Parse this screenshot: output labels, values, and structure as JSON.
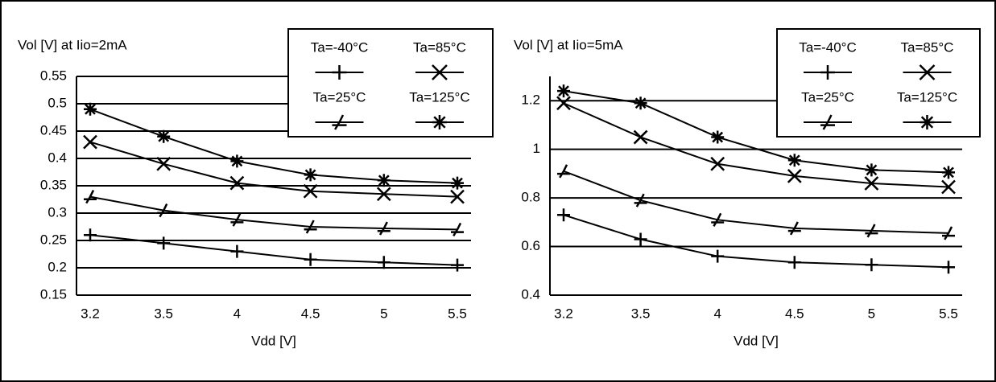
{
  "chart_data": [
    {
      "type": "line",
      "title": "Vol [V] at Iio=2mA",
      "x_label": "Vdd [V]",
      "categories": [
        "3.2",
        "3.5",
        "4",
        "4.5",
        "5",
        "5.5"
      ],
      "ylim": [
        0.15,
        0.55
      ],
      "yticks": [
        0.15,
        0.2,
        0.25,
        0.3,
        0.35,
        0.4,
        0.45,
        0.5,
        0.55
      ],
      "grid": true,
      "legend": "upper right",
      "series": [
        {
          "name": "Ta=-40°C",
          "color": "#000000",
          "marker": "plus",
          "values": [
            0.26,
            0.245,
            0.23,
            0.215,
            0.21,
            0.205
          ]
        },
        {
          "name": "Ta=85°C",
          "color": "#000000",
          "marker": "x",
          "values": [
            0.43,
            0.39,
            0.355,
            0.34,
            0.335,
            0.33
          ]
        },
        {
          "name": "Ta=25°C",
          "color": "#000000",
          "marker": "tri",
          "values": [
            0.33,
            0.305,
            0.288,
            0.275,
            0.272,
            0.27
          ]
        },
        {
          "name": "Ta=125°C",
          "color": "#000000",
          "marker": "star",
          "values": [
            0.49,
            0.44,
            0.395,
            0.37,
            0.36,
            0.355
          ]
        }
      ]
    },
    {
      "type": "line",
      "title": "Vol [V] at Iio=5mA",
      "x_label": "Vdd [V]",
      "categories": [
        "3.2",
        "3.5",
        "4",
        "4.5",
        "5",
        "5.5"
      ],
      "ylim": [
        0.4,
        1.3
      ],
      "yticks": [
        0.4,
        0.6,
        0.8,
        1,
        1.2
      ],
      "grid": true,
      "legend": "upper right",
      "series": [
        {
          "name": "Ta=-40°C",
          "color": "#000000",
          "marker": "plus",
          "values": [
            0.73,
            0.63,
            0.56,
            0.535,
            0.525,
            0.515
          ]
        },
        {
          "name": "Ta=85°C",
          "color": "#000000",
          "marker": "x",
          "values": [
            1.19,
            1.05,
            0.94,
            0.89,
            0.86,
            0.845
          ]
        },
        {
          "name": "Ta=25°C",
          "color": "#000000",
          "marker": "tri",
          "values": [
            0.91,
            0.79,
            0.71,
            0.675,
            0.665,
            0.655
          ]
        },
        {
          "name": "Ta=125°C",
          "color": "#000000",
          "marker": "star",
          "values": [
            1.24,
            1.19,
            1.05,
            0.955,
            0.915,
            0.905
          ]
        }
      ]
    }
  ]
}
